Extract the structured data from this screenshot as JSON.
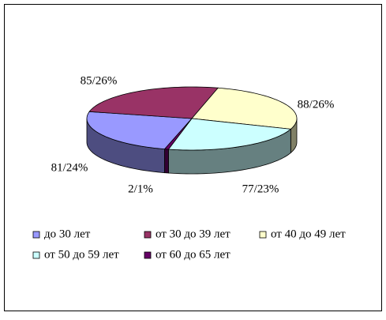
{
  "chart_data": {
    "type": "pie3d",
    "categories": [
      "до 30 лет",
      "от 30 до 39 лет",
      "от 40 до 49 лет",
      "от 50 до 59 лет",
      "от 60 до 65 лет"
    ],
    "values": [
      81,
      85,
      88,
      77,
      2
    ],
    "value_labels": [
      "81/24%",
      "85/26%",
      "88/26%",
      "77/23%",
      "2/1%"
    ],
    "colors": [
      "#9999ff",
      "#993366",
      "#ffffcc",
      "#ccffff",
      "#660066"
    ],
    "legend": "bottom"
  }
}
